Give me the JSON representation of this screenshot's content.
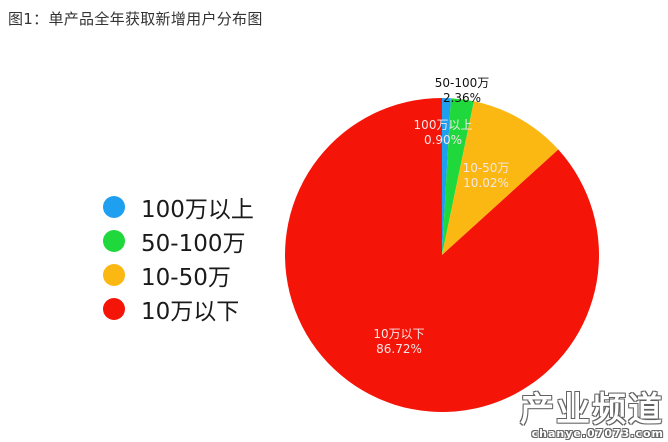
{
  "title": "图1：单产品全年获取新增用户分布图",
  "legend": [
    {
      "label": "100万以上",
      "color": "#1f9ff0"
    },
    {
      "label": "50-100万",
      "color": "#1ed83c"
    },
    {
      "label": "10-50万",
      "color": "#fbb812"
    },
    {
      "label": "10万以下",
      "color": "#f51408"
    }
  ],
  "slice_labels": [
    {
      "name": "100万以上",
      "value": "0.90%"
    },
    {
      "name": "50-100万",
      "value": "2.36%"
    },
    {
      "name": "10-50万",
      "value": "10.02%"
    },
    {
      "name": "10万以下",
      "value": "86.72%"
    }
  ],
  "watermark": {
    "main": "产业频道",
    "sub": "chanye.07073.com"
  },
  "chart_data": {
    "type": "pie",
    "title": "图1：单产品全年获取新增用户分布图",
    "categories": [
      "100万以上",
      "50-100万",
      "10-50万",
      "10万以下"
    ],
    "values": [
      0.9,
      2.36,
      10.02,
      86.72
    ],
    "unit": "%",
    "colors": [
      "#1f9ff0",
      "#1ed83c",
      "#fbb812",
      "#f51408"
    ],
    "start_angle": "12 o'clock, clockwise",
    "legend_position": "left"
  }
}
